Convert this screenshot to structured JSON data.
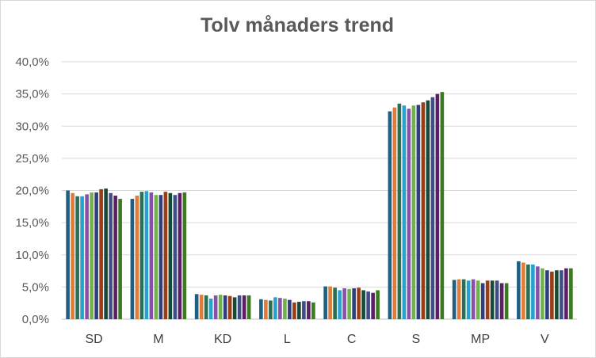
{
  "chart_data": {
    "type": "bar",
    "title": "Tolv månaders trend",
    "categories": [
      "SD",
      "M",
      "KD",
      "L",
      "C",
      "S",
      "MP",
      "V"
    ],
    "ylim": [
      0,
      40
    ],
    "yticks": [
      "0,0%",
      "5,0%",
      "10,0%",
      "15,0%",
      "20,0%",
      "25,0%",
      "30,0%",
      "35,0%",
      "40,0%"
    ],
    "grid": true,
    "legend": "none",
    "colors": [
      "#1f5f82",
      "#e07b39",
      "#2a6e53",
      "#25a2cd",
      "#8a4fa8",
      "#6fb24a",
      "#2f3f7e",
      "#9c3c14",
      "#174a35",
      "#3f4e86",
      "#5c1f63",
      "#3b7a1f"
    ],
    "series": [
      {
        "values": [
          20.0,
          18.7,
          3.9,
          3.1,
          5.1,
          32.3,
          6.1,
          9.0
        ]
      },
      {
        "values": [
          19.6,
          19.2,
          3.8,
          3.0,
          5.1,
          32.9,
          6.2,
          8.8
        ]
      },
      {
        "values": [
          19.1,
          19.8,
          3.7,
          2.9,
          4.9,
          33.5,
          6.2,
          8.5
        ]
      },
      {
        "values": [
          19.1,
          19.9,
          3.2,
          3.4,
          4.5,
          33.2,
          6.0,
          8.5
        ]
      },
      {
        "values": [
          19.4,
          19.7,
          3.7,
          3.3,
          4.8,
          32.7,
          6.2,
          8.2
        ]
      },
      {
        "values": [
          19.7,
          19.3,
          3.8,
          3.2,
          4.7,
          33.2,
          6.0,
          7.9
        ]
      },
      {
        "values": [
          19.7,
          19.3,
          3.7,
          3.0,
          4.8,
          33.3,
          5.6,
          7.6
        ]
      },
      {
        "values": [
          20.2,
          19.8,
          3.6,
          2.6,
          4.9,
          33.7,
          6.0,
          7.4
        ]
      },
      {
        "values": [
          20.3,
          19.6,
          3.4,
          2.7,
          4.5,
          34.0,
          6.0,
          7.6
        ]
      },
      {
        "values": [
          19.6,
          19.3,
          3.7,
          2.8,
          4.3,
          34.5,
          6.0,
          7.6
        ]
      },
      {
        "values": [
          19.2,
          19.6,
          3.7,
          2.8,
          4.1,
          35.0,
          5.6,
          7.9
        ]
      },
      {
        "values": [
          18.7,
          19.7,
          3.7,
          2.6,
          4.5,
          35.3,
          5.6,
          7.9
        ]
      }
    ]
  }
}
